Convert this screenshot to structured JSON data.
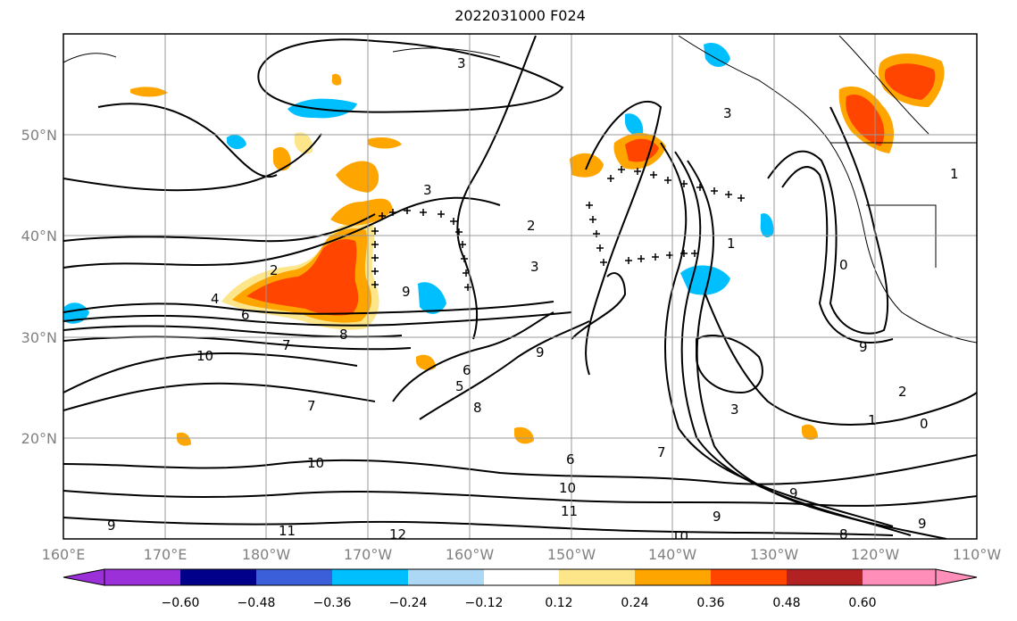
{
  "title": "2022031000 F024",
  "map": {
    "lon_range": [
      160,
      250
    ],
    "lat_range": [
      10,
      60
    ],
    "x_ticks": [
      "160°E",
      "170°E",
      "180°W",
      "170°W",
      "160°W",
      "150°W",
      "140°W",
      "130°W",
      "120°W",
      "110°W"
    ],
    "y_ticks": [
      "50°N",
      "40°N",
      "30°N",
      "20°N"
    ],
    "grid": true
  },
  "colorbar": {
    "labels": [
      "−0.60",
      "−0.48",
      "−0.36",
      "−0.24",
      "−0.12",
      "0.12",
      "0.24",
      "0.36",
      "0.48",
      "0.60"
    ],
    "colors": [
      "#9b30d9",
      "#00008b",
      "#3b5fd9",
      "#00bfff",
      "#add8f5",
      "#ffffff",
      "#fde68a",
      "#ffa500",
      "#ff4500",
      "#b22222",
      "#ff8fb8"
    ]
  },
  "contour_labels": [
    "3",
    "3",
    "3",
    "2",
    "2",
    "4",
    "6",
    "8",
    "7",
    "9",
    "10",
    "3",
    "5",
    "6",
    "8",
    "9",
    "7",
    "10",
    "9",
    "1",
    "0",
    "1",
    "2",
    "6",
    "7",
    "10",
    "11",
    "9",
    "12",
    "11",
    "9",
    "1",
    "0",
    "3",
    "8",
    "9",
    "10",
    "9"
  ]
}
